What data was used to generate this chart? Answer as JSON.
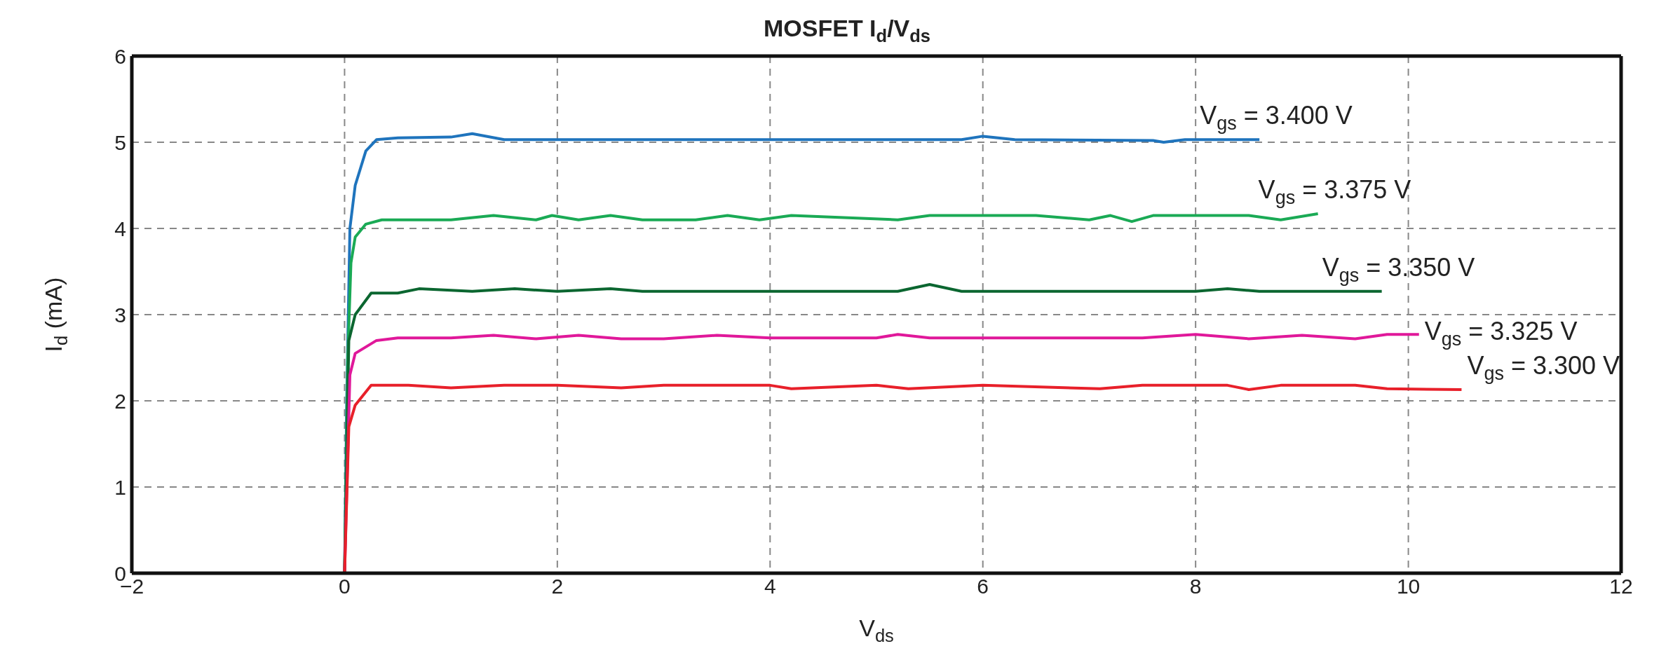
{
  "chart_data": {
    "type": "line",
    "title": "MOSFET I$_{d}$/V$_{ds}$",
    "xlabel": "V$_{ds}$",
    "ylabel": "I$_{d}$ (mA)",
    "xlim": [
      -2,
      12
    ],
    "xticks": [
      {
        "value": -2,
        "label": "−2"
      },
      0,
      2,
      4,
      6,
      8,
      10,
      12
    ],
    "ylim": [
      0,
      6
    ],
    "yticks": [
      0,
      1,
      2,
      3,
      4,
      5,
      6
    ],
    "grid": true,
    "marker": "none",
    "line_style": "solid",
    "series": [
      {
        "name": "V$_{gs}$ = 3.400 V",
        "color": "#1f74bd",
        "x": [
          0,
          0.02,
          0.05,
          0.1,
          0.2,
          0.3,
          0.5,
          1.0,
          1.2,
          1.5,
          2,
          4,
          5.8,
          6,
          6.3,
          7.6,
          7.7,
          7.9,
          8.6
        ],
        "values": [
          0,
          2,
          4,
          4.5,
          4.9,
          5.03,
          5.05,
          5.06,
          5.1,
          5.03,
          5.03,
          5.03,
          5.03,
          5.07,
          5.03,
          5.02,
          5.0,
          5.03,
          5.03
        ]
      },
      {
        "name": "V$_{gs}$ = 3.375 V",
        "color": "#1aaa55",
        "x": [
          0,
          0.03,
          0.06,
          0.1,
          0.2,
          0.35,
          1.0,
          1.4,
          1.8,
          1.95,
          2.2,
          2.5,
          2.8,
          3.3,
          3.6,
          3.9,
          4.2,
          5.2,
          5.5,
          6.5,
          7.0,
          7.2,
          7.4,
          7.6,
          8.5,
          8.8,
          9.15
        ],
        "values": [
          0,
          2.5,
          3.6,
          3.9,
          4.05,
          4.1,
          4.1,
          4.15,
          4.1,
          4.15,
          4.1,
          4.15,
          4.1,
          4.1,
          4.15,
          4.1,
          4.15,
          4.1,
          4.15,
          4.15,
          4.1,
          4.15,
          4.08,
          4.15,
          4.15,
          4.1,
          4.17
        ]
      },
      {
        "name": "V$_{gs}$ = 3.350 V",
        "color": "#0b6630",
        "x": [
          0,
          0.04,
          0.1,
          0.25,
          0.5,
          0.7,
          1.2,
          1.6,
          2.0,
          2.5,
          2.8,
          3.5,
          4.0,
          5.2,
          5.5,
          5.8,
          8.0,
          8.3,
          8.6,
          9.75
        ],
        "values": [
          0,
          2.7,
          3.0,
          3.25,
          3.25,
          3.3,
          3.27,
          3.3,
          3.27,
          3.3,
          3.27,
          3.27,
          3.27,
          3.27,
          3.35,
          3.27,
          3.27,
          3.3,
          3.27,
          3.27
        ]
      },
      {
        "name": "V$_{gs}$ = 3.325 V",
        "color": "#e0189a",
        "x": [
          0,
          0.05,
          0.1,
          0.3,
          0.5,
          1.0,
          1.4,
          1.8,
          2.2,
          2.6,
          3.0,
          3.5,
          4.0,
          5.0,
          5.2,
          5.5,
          7.5,
          8.0,
          8.5,
          9.0,
          9.5,
          9.8,
          10.1
        ],
        "values": [
          0,
          2.3,
          2.55,
          2.7,
          2.73,
          2.73,
          2.76,
          2.72,
          2.76,
          2.72,
          2.72,
          2.76,
          2.73,
          2.73,
          2.77,
          2.73,
          2.73,
          2.77,
          2.72,
          2.76,
          2.72,
          2.77,
          2.77
        ]
      },
      {
        "name": "V$_{gs}$ = 3.300 V",
        "color": "#e8202a",
        "x": [
          0,
          0.04,
          0.1,
          0.25,
          0.6,
          1.0,
          1.5,
          2.0,
          2.6,
          3.0,
          4.0,
          4.2,
          5.0,
          5.3,
          6.0,
          7.1,
          7.5,
          8.3,
          8.5,
          8.8,
          9.5,
          9.8,
          10.5
        ],
        "values": [
          0,
          1.7,
          1.95,
          2.18,
          2.18,
          2.15,
          2.18,
          2.18,
          2.15,
          2.18,
          2.18,
          2.14,
          2.18,
          2.14,
          2.18,
          2.14,
          2.18,
          2.18,
          2.13,
          2.18,
          2.18,
          2.14,
          2.13
        ]
      }
    ]
  }
}
